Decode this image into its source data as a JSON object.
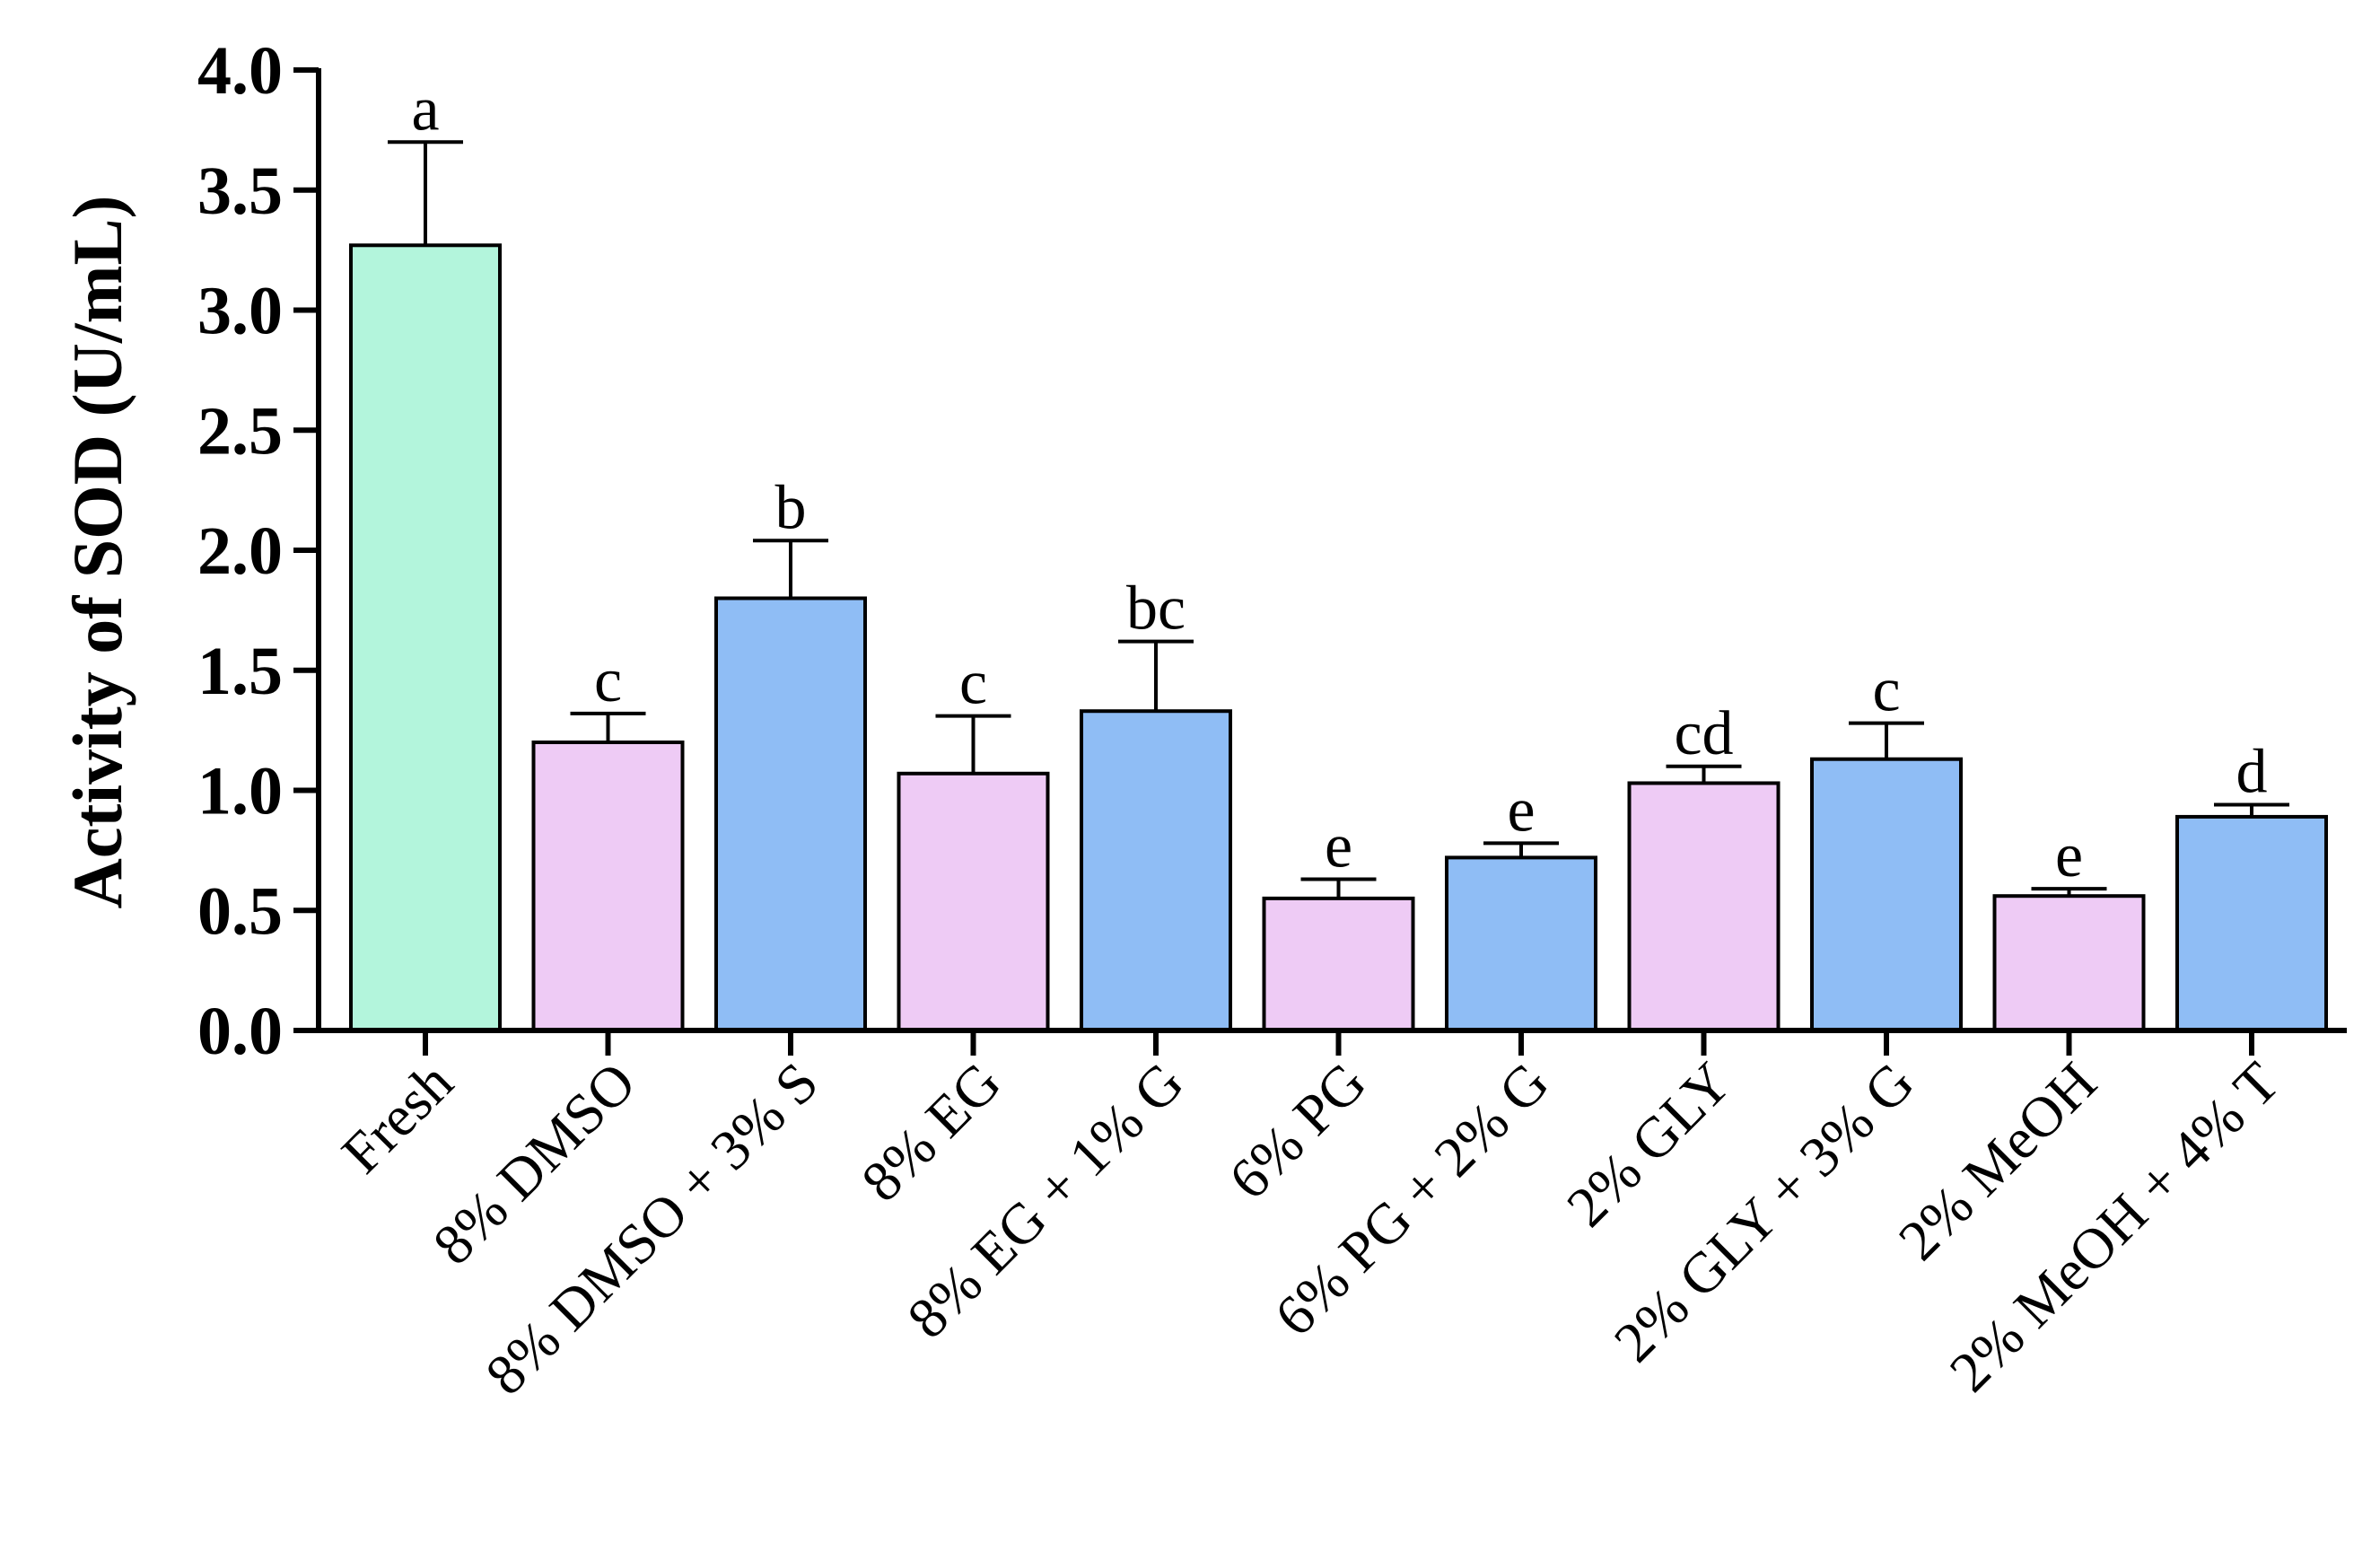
{
  "chart_data": {
    "type": "bar",
    "title": "",
    "xlabel": "",
    "ylabel": "Activity of SOD (U/mL)",
    "ylim": [
      0,
      4.0
    ],
    "yticks": [
      "0.0",
      "0.5",
      "1.0",
      "1.5",
      "2.0",
      "2.5",
      "3.0",
      "3.5",
      "4.0"
    ],
    "grid": false,
    "categories": [
      "Fresh",
      "8% DMSO",
      "8% DMSO + 3% S",
      "8% EG",
      "8% EG + 1% G",
      "6% PG",
      "6% PG + 2% G",
      "2% GLY",
      "2% GLY + 3% G",
      "2% MeOH",
      "2% MeOH + 4% T"
    ],
    "values": [
      3.27,
      1.2,
      1.8,
      1.07,
      1.33,
      0.55,
      0.72,
      1.03,
      1.13,
      0.56,
      0.89
    ],
    "errors": [
      0.43,
      0.12,
      0.24,
      0.24,
      0.29,
      0.08,
      0.06,
      0.07,
      0.15,
      0.03,
      0.05
    ],
    "significance": [
      "a",
      "c",
      "b",
      "c",
      "bc",
      "e",
      "e",
      "cd",
      "c",
      "e",
      "d"
    ],
    "bar_colors": [
      "#b3f5dc",
      "#eecbf5",
      "#8fbdf5",
      "#eecbf5",
      "#8fbdf5",
      "#eecbf5",
      "#8fbdf5",
      "#eecbf5",
      "#8fbdf5",
      "#eecbf5",
      "#8fbdf5"
    ]
  }
}
